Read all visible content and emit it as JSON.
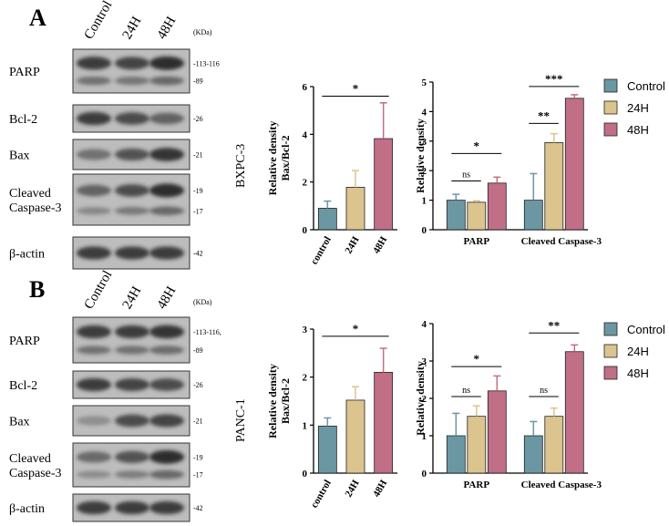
{
  "colors": {
    "control": "#6b97a2",
    "h24": "#dbc48e",
    "h48": "#c06f86",
    "axis": "#000000",
    "blot_bg": "#bdbdbd",
    "blot_band": "#262626"
  },
  "panels": [
    {
      "letter": "A",
      "cell_line": "BXPC-3",
      "lanes": [
        "Control",
        "24H",
        "48H"
      ],
      "kda_label": "(KDa)",
      "blots": [
        {
          "label": [
            "PARP"
          ],
          "mw": [
            "-113-116",
            "-89"
          ],
          "intensity": [
            0.85,
            0.8,
            0.95
          ]
        },
        {
          "label": [
            "Bcl-2"
          ],
          "mw": [
            "-26"
          ],
          "intensity": [
            0.85,
            0.75,
            0.6
          ]
        },
        {
          "label": [
            "Bax"
          ],
          "mw": [
            "-21"
          ],
          "intensity": [
            0.5,
            0.7,
            0.9
          ]
        },
        {
          "label": [
            "Cleaved",
            "Caspase-3"
          ],
          "mw": [
            "-19",
            "-17"
          ],
          "intensity": [
            0.6,
            0.75,
            0.95
          ]
        },
        {
          "label": [
            "β-actin"
          ],
          "mw": [
            "-42"
          ],
          "intensity": [
            0.85,
            0.85,
            0.85
          ]
        }
      ]
    },
    {
      "letter": "B",
      "cell_line": "PANC-1",
      "lanes": [
        "Control",
        "24H",
        "48H"
      ],
      "kda_label": "(KDa)",
      "blots": [
        {
          "label": [
            "PARP"
          ],
          "mw": [
            "-113-116,",
            "-89"
          ],
          "intensity": [
            0.85,
            0.85,
            0.9
          ]
        },
        {
          "label": [
            "Bcl-2"
          ],
          "mw": [
            "-26"
          ],
          "intensity": [
            0.85,
            0.8,
            0.75
          ]
        },
        {
          "label": [
            "Bax"
          ],
          "mw": [
            "-21"
          ],
          "intensity": [
            0.3,
            0.75,
            0.8
          ]
        },
        {
          "label": [
            "Cleaved",
            "Caspase-3"
          ],
          "mw": [
            "-19",
            "-17"
          ],
          "intensity": [
            0.55,
            0.7,
            0.95
          ]
        },
        {
          "label": [
            "β-actin"
          ],
          "mw": [
            "-42"
          ],
          "intensity": [
            0.85,
            0.85,
            0.85
          ]
        }
      ]
    }
  ],
  "legend": [
    "Control",
    "24H",
    "48H"
  ],
  "chart_data": [
    {
      "type": "bar",
      "panel": "A",
      "ylabel": [
        "Relative density",
        "Bax/Bcl-2"
      ],
      "categories": [
        "control",
        "24H",
        "48H"
      ],
      "values": [
        0.9,
        1.78,
        3.82
      ],
      "errors": [
        0.3,
        0.7,
        1.5
      ],
      "ylim": [
        0,
        6
      ],
      "yticks": [
        0,
        2,
        4,
        6
      ],
      "annotations": [
        {
          "from": 0,
          "to": 2,
          "label": "*",
          "y": 5.6
        }
      ]
    },
    {
      "type": "bar",
      "panel": "A",
      "ylabel": [
        "Relative density"
      ],
      "groups": [
        "PARP",
        "Cleaved Caspase-3"
      ],
      "series": [
        {
          "name": "Control",
          "values": [
            1.0,
            1.0
          ],
          "errors": [
            0.2,
            0.9
          ]
        },
        {
          "name": "24H",
          "values": [
            0.93,
            2.95
          ],
          "errors": [
            0.05,
            0.3
          ]
        },
        {
          "name": "48H",
          "values": [
            1.58,
            4.45
          ],
          "errors": [
            0.2,
            0.12
          ]
        }
      ],
      "ylim": [
        0,
        5
      ],
      "yticks": [
        0,
        1,
        2,
        3,
        4,
        5
      ],
      "annotations": [
        {
          "group": 0,
          "from": 0,
          "to": 1,
          "label": "ns",
          "y": 1.65
        },
        {
          "group": 0,
          "from": 0,
          "to": 2,
          "label": "*",
          "y": 2.58
        },
        {
          "group": 1,
          "from": 0,
          "to": 1,
          "label": "**",
          "y": 3.6
        },
        {
          "group": 1,
          "from": 0,
          "to": 2,
          "label": "***",
          "y": 4.85
        }
      ]
    },
    {
      "type": "bar",
      "panel": "B",
      "ylabel": [
        "Relative density",
        "Bax/Bcl-2"
      ],
      "categories": [
        "control",
        "24H",
        "48H"
      ],
      "values": [
        0.98,
        1.52,
        2.1
      ],
      "errors": [
        0.17,
        0.28,
        0.5
      ],
      "ylim": [
        0,
        3
      ],
      "yticks": [
        0,
        1,
        2,
        3
      ],
      "annotations": [
        {
          "from": 0,
          "to": 2,
          "label": "*",
          "y": 2.85
        }
      ]
    },
    {
      "type": "bar",
      "panel": "B",
      "ylabel": [
        "Relative density"
      ],
      "groups": [
        "PARP",
        "Cleaved Caspase-3"
      ],
      "series": [
        {
          "name": "Control",
          "values": [
            1.0,
            1.0
          ],
          "errors": [
            0.6,
            0.38
          ]
        },
        {
          "name": "24H",
          "values": [
            1.52,
            1.52
          ],
          "errors": [
            0.28,
            0.22
          ]
        },
        {
          "name": "48H",
          "values": [
            2.2,
            3.25
          ],
          "errors": [
            0.4,
            0.18
          ]
        }
      ],
      "ylim": [
        0,
        4
      ],
      "yticks": [
        0,
        1,
        2,
        3,
        4
      ],
      "annotations": [
        {
          "group": 0,
          "from": 0,
          "to": 1,
          "label": "ns",
          "y": 2.05
        },
        {
          "group": 0,
          "from": 0,
          "to": 2,
          "label": "*",
          "y": 2.85
        },
        {
          "group": 1,
          "from": 0,
          "to": 1,
          "label": "ns",
          "y": 2.05
        },
        {
          "group": 1,
          "from": 0,
          "to": 2,
          "label": "**",
          "y": 3.75
        }
      ]
    }
  ]
}
